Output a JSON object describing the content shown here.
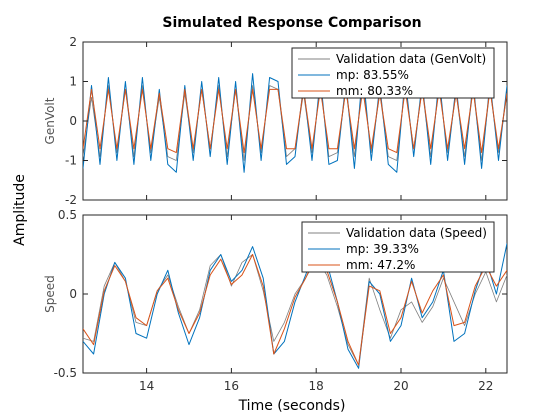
{
  "chart_data": {
    "type": "line",
    "title": "Simulated Response Comparison",
    "xlabel": "Time (seconds)",
    "shared_ylabel": "Amplitude",
    "xlim": [
      12.5,
      22.5
    ],
    "xticks": [
      14,
      16,
      18,
      20,
      22
    ],
    "grid": false,
    "panels": [
      {
        "ylabel": "GenVolt",
        "ylim": [
          -2,
          2
        ],
        "yticks": [
          2,
          1,
          0,
          -1,
          -2
        ],
        "legend": "top-right",
        "series": [
          {
            "name": "Validation data (GenVolt)",
            "color": "#808080",
            "x": [
              12.5,
              12.7,
              12.9,
              13.1,
              13.3,
              13.5,
              13.7,
              13.9,
              14.1,
              14.3,
              14.5,
              14.7,
              14.9,
              15.1,
              15.3,
              15.5,
              15.7,
              15.9,
              16.1,
              16.3,
              16.5,
              16.7,
              16.9,
              17.1,
              17.3,
              17.5,
              17.7,
              17.9,
              18.1,
              18.3,
              18.5,
              18.7,
              18.9,
              19.1,
              19.3,
              19.5,
              19.7,
              19.9,
              20.1,
              20.3,
              20.5,
              20.7,
              20.9,
              21.1,
              21.3,
              21.5,
              21.7,
              21.9,
              22.1,
              22.3,
              22.5
            ],
            "y": [
              -0.9,
              0.6,
              -0.9,
              0.9,
              -0.8,
              0.8,
              -0.9,
              0.9,
              -0.8,
              0.6,
              -0.9,
              -1.0,
              0.7,
              -0.8,
              0.8,
              -0.7,
              0.9,
              -0.9,
              0.8,
              -1.0,
              0.9,
              -0.8,
              0.9,
              0.8,
              -0.9,
              -0.7,
              0.7,
              -0.8,
              0.9,
              -0.9,
              -0.8,
              0.8,
              -0.9,
              1.0,
              -0.8,
              0.7,
              -0.9,
              -1.0,
              0.9,
              -0.7,
              0.8,
              -0.9,
              0.9,
              -0.8,
              0.7,
              -0.9,
              0.8,
              -1.0,
              0.8,
              -0.8,
              0.7
            ]
          },
          {
            "name": "mp: 83.55%",
            "color": "#0072BD",
            "x": [
              12.5,
              12.7,
              12.9,
              13.1,
              13.3,
              13.5,
              13.7,
              13.9,
              14.1,
              14.3,
              14.5,
              14.7,
              14.9,
              15.1,
              15.3,
              15.5,
              15.7,
              15.9,
              16.1,
              16.3,
              16.5,
              16.7,
              16.9,
              17.1,
              17.3,
              17.5,
              17.7,
              17.9,
              18.1,
              18.3,
              18.5,
              18.7,
              18.9,
              19.1,
              19.3,
              19.5,
              19.7,
              19.9,
              20.1,
              20.3,
              20.5,
              20.7,
              20.9,
              21.1,
              21.3,
              21.5,
              21.7,
              21.9,
              22.1,
              22.3,
              22.5
            ],
            "y": [
              -1.2,
              0.9,
              -1.1,
              1.1,
              -1.0,
              1.0,
              -1.1,
              1.1,
              -1.0,
              0.8,
              -1.1,
              -1.3,
              0.9,
              -1.0,
              1.0,
              -0.9,
              1.1,
              -1.1,
              1.0,
              -1.3,
              1.2,
              -1.0,
              1.1,
              1.0,
              -1.1,
              -0.9,
              0.9,
              -1.0,
              1.1,
              -1.1,
              -1.0,
              1.0,
              -1.2,
              1.3,
              -1.0,
              0.9,
              -1.1,
              -1.3,
              1.1,
              -0.9,
              1.0,
              -1.1,
              1.1,
              -1.0,
              0.9,
              -1.1,
              1.0,
              -1.2,
              1.0,
              -1.0,
              0.9
            ]
          },
          {
            "name": "mm: 80.33%",
            "color": "#D95319",
            "x": [
              12.5,
              12.7,
              12.9,
              13.1,
              13.3,
              13.5,
              13.7,
              13.9,
              14.1,
              14.3,
              14.5,
              14.7,
              14.9,
              15.1,
              15.3,
              15.5,
              15.7,
              15.9,
              16.1,
              16.3,
              16.5,
              16.7,
              16.9,
              17.1,
              17.3,
              17.5,
              17.7,
              17.9,
              18.1,
              18.3,
              18.5,
              18.7,
              18.9,
              19.1,
              19.3,
              19.5,
              19.7,
              19.9,
              20.1,
              20.3,
              20.5,
              20.7,
              20.9,
              21.1,
              21.3,
              21.5,
              21.7,
              21.9,
              22.1,
              22.3,
              22.5
            ],
            "y": [
              -0.7,
              0.8,
              -0.7,
              0.8,
              -0.7,
              0.8,
              -0.7,
              0.8,
              -0.7,
              0.7,
              -0.7,
              -0.8,
              0.8,
              -0.7,
              0.8,
              -0.7,
              0.8,
              -0.7,
              0.8,
              -0.8,
              0.8,
              -0.7,
              0.8,
              0.8,
              -0.7,
              -0.7,
              0.8,
              -0.7,
              0.8,
              -0.7,
              -0.7,
              0.8,
              -0.7,
              0.8,
              -0.7,
              0.7,
              -0.7,
              -0.8,
              0.8,
              -0.7,
              0.8,
              -0.7,
              0.8,
              -0.7,
              0.7,
              -0.7,
              0.8,
              -0.8,
              0.8,
              -0.7,
              0.7
            ]
          }
        ]
      },
      {
        "ylabel": "Speed",
        "ylim": [
          -0.5,
          0.5
        ],
        "yticks": [
          0.5,
          0,
          -0.5
        ],
        "legend": "top-right",
        "series": [
          {
            "name": "Validation data (Speed)",
            "color": "#808080",
            "x": [
              12.5,
              12.75,
              13.0,
              13.25,
              13.5,
              13.75,
              14.0,
              14.25,
              14.5,
              14.75,
              15.0,
              15.25,
              15.5,
              15.75,
              16.0,
              16.25,
              16.5,
              16.75,
              17.0,
              17.25,
              17.5,
              17.75,
              18.0,
              18.25,
              18.5,
              18.75,
              19.0,
              19.25,
              19.5,
              19.75,
              20.0,
              20.25,
              20.5,
              20.75,
              21.0,
              21.25,
              21.5,
              21.75,
              22.0,
              22.25,
              22.5
            ],
            "y": [
              -0.28,
              -0.3,
              0.05,
              0.2,
              0.08,
              -0.18,
              -0.2,
              0.02,
              0.12,
              -0.08,
              -0.25,
              -0.1,
              0.18,
              0.25,
              0.05,
              0.2,
              0.25,
              0.02,
              -0.3,
              -0.18,
              0.0,
              0.1,
              0.22,
              0.12,
              -0.08,
              -0.32,
              -0.45,
              0.1,
              -0.1,
              -0.28,
              -0.1,
              -0.05,
              -0.18,
              -0.08,
              0.1,
              -0.05,
              -0.2,
              0.0,
              0.14,
              -0.05,
              0.12
            ]
          },
          {
            "name": "mp: 39.33%",
            "color": "#0072BD",
            "x": [
              12.5,
              12.75,
              13.0,
              13.25,
              13.5,
              13.75,
              14.0,
              14.25,
              14.5,
              14.75,
              15.0,
              15.25,
              15.5,
              15.75,
              16.0,
              16.25,
              16.5,
              16.75,
              17.0,
              17.25,
              17.5,
              17.75,
              18.0,
              18.25,
              18.5,
              18.75,
              19.0,
              19.25,
              19.5,
              19.75,
              20.0,
              20.25,
              20.5,
              20.75,
              21.0,
              21.25,
              21.5,
              21.75,
              22.0,
              22.25,
              22.5
            ],
            "y": [
              -0.3,
              -0.38,
              0.0,
              0.2,
              0.1,
              -0.25,
              -0.28,
              0.0,
              0.15,
              -0.12,
              -0.32,
              -0.15,
              0.15,
              0.25,
              0.08,
              0.15,
              0.3,
              0.1,
              -0.38,
              -0.3,
              -0.05,
              0.12,
              0.3,
              0.2,
              -0.05,
              -0.35,
              -0.47,
              0.08,
              0.0,
              -0.3,
              -0.2,
              0.1,
              -0.15,
              -0.05,
              0.15,
              -0.3,
              -0.25,
              0.02,
              0.22,
              0.0,
              0.32
            ]
          },
          {
            "name": "mm: 47.2%",
            "color": "#D95319",
            "x": [
              12.5,
              12.75,
              13.0,
              13.25,
              13.5,
              13.75,
              14.0,
              14.25,
              14.5,
              14.75,
              15.0,
              15.25,
              15.5,
              15.75,
              16.0,
              16.25,
              16.5,
              16.75,
              17.0,
              17.25,
              17.5,
              17.75,
              18.0,
              18.25,
              18.5,
              18.75,
              19.0,
              19.25,
              19.5,
              19.75,
              20.0,
              20.25,
              20.5,
              20.75,
              21.0,
              21.25,
              21.5,
              21.75,
              22.0,
              22.25,
              22.5
            ],
            "y": [
              -0.22,
              -0.32,
              0.02,
              0.18,
              0.08,
              -0.15,
              -0.2,
              0.02,
              0.1,
              -0.1,
              -0.25,
              -0.12,
              0.12,
              0.22,
              0.06,
              0.12,
              0.25,
              0.05,
              -0.38,
              -0.22,
              -0.02,
              0.1,
              0.25,
              0.15,
              -0.05,
              -0.3,
              -0.45,
              0.05,
              0.02,
              -0.25,
              -0.15,
              0.08,
              -0.12,
              0.02,
              0.12,
              -0.2,
              -0.18,
              0.05,
              0.18,
              0.05,
              0.15
            ]
          }
        ]
      }
    ]
  }
}
